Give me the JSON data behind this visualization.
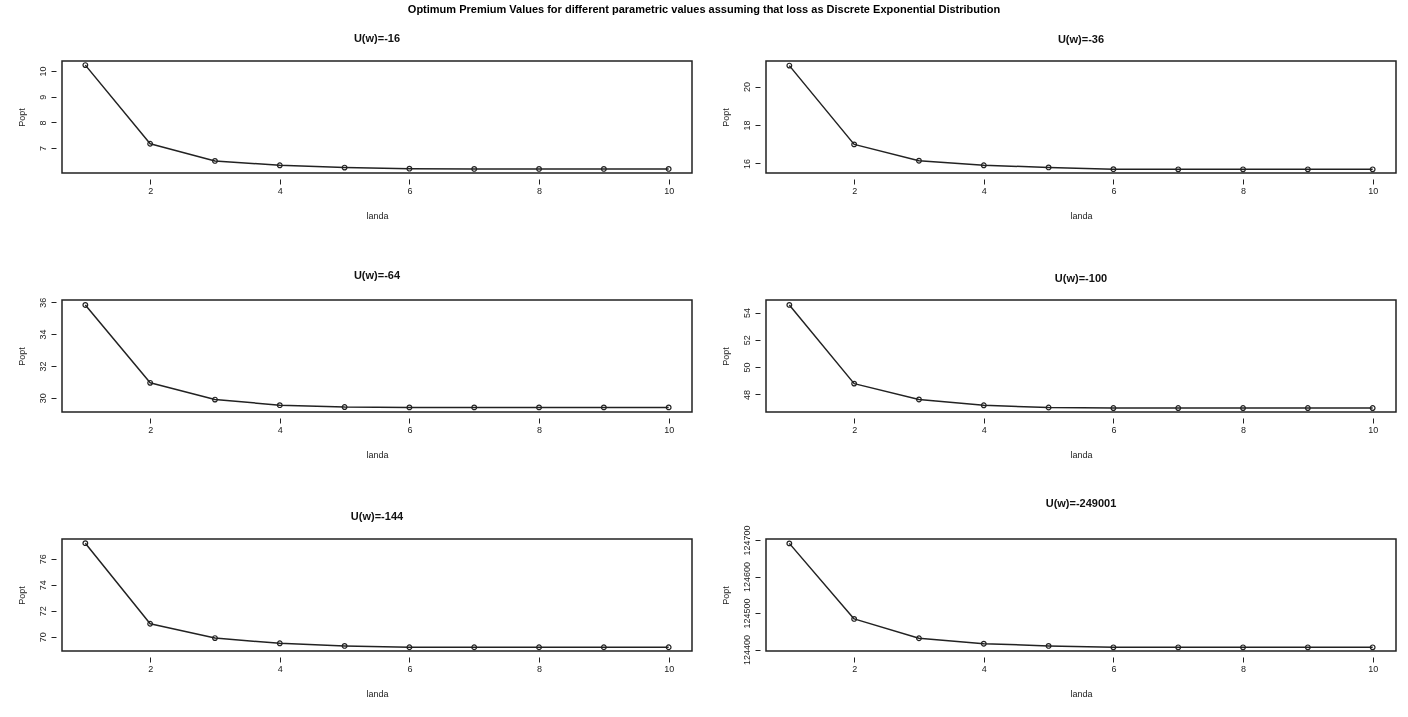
{
  "chart_data": [
    {
      "type": "line",
      "title": "Optimum Premium Values for different parametric values assuming that loss as Discrete Exponential Distribution",
      "subtitle": "U(w)=-16",
      "xlabel": "landa",
      "ylabel": "Popt",
      "x": [
        1,
        2,
        3,
        4,
        5,
        6,
        7,
        8,
        9,
        10
      ],
      "xlim": [
        0.64,
        10.36
      ],
      "xticks": [
        2,
        4,
        6,
        8,
        10
      ],
      "ylim": [
        6.03,
        10.39
      ],
      "yticks": [
        7,
        8,
        9,
        10
      ],
      "marker": "circle",
      "grid": false,
      "series": [
        {
          "color": "#222222",
          "values": [
            10.23,
            7.17,
            6.5,
            6.33,
            6.24,
            6.2,
            6.19,
            6.19,
            6.19,
            6.19
          ]
        }
      ]
    },
    {
      "type": "line",
      "subtitle": "U(w)=-36",
      "xlabel": "landa",
      "ylabel": "Popt",
      "x": [
        1,
        2,
        3,
        4,
        5,
        6,
        7,
        8,
        9,
        10
      ],
      "xlim": [
        0.64,
        10.36
      ],
      "xticks": [
        2,
        4,
        6,
        8,
        10
      ],
      "ylim": [
        15.5,
        21.33
      ],
      "yticks": [
        16,
        18,
        20
      ],
      "marker": "circle",
      "grid": false,
      "series": [
        {
          "color": "#222222",
          "values": [
            21.09,
            16.99,
            16.14,
            15.9,
            15.79,
            15.7,
            15.69,
            15.69,
            15.69,
            15.69
          ]
        }
      ]
    },
    {
      "type": "line",
      "subtitle": "U(w)=-64",
      "xlabel": "landa",
      "ylabel": "Popt",
      "x": [
        1,
        2,
        3,
        4,
        5,
        6,
        7,
        8,
        9,
        10
      ],
      "xlim": [
        0.64,
        10.36
      ],
      "xticks": [
        2,
        4,
        6,
        8,
        10
      ],
      "ylim": [
        29.11,
        36.14
      ],
      "yticks": [
        30,
        32,
        34,
        36
      ],
      "marker": "circle",
      "grid": false,
      "series": [
        {
          "color": "#222222",
          "values": [
            35.83,
            30.94,
            29.89,
            29.54,
            29.42,
            29.4,
            29.4,
            29.4,
            29.4,
            29.4
          ]
        }
      ]
    },
    {
      "type": "line",
      "subtitle": "U(w)=-100",
      "xlabel": "landa",
      "ylabel": "Popt",
      "x": [
        1,
        2,
        3,
        4,
        5,
        6,
        7,
        8,
        9,
        10
      ],
      "xlim": [
        0.64,
        10.36
      ],
      "xticks": [
        2,
        4,
        6,
        8,
        10
      ],
      "ylim": [
        46.71,
        54.92
      ],
      "yticks": [
        48,
        50,
        52,
        54
      ],
      "marker": "circle",
      "grid": false,
      "series": [
        {
          "color": "#222222",
          "values": [
            54.56,
            48.79,
            47.63,
            47.2,
            47.04,
            47.0,
            47.0,
            47.0,
            47.0,
            47.0
          ]
        }
      ]
    },
    {
      "type": "line",
      "subtitle": "U(w)=-144",
      "xlabel": "landa",
      "ylabel": "Popt",
      "x": [
        1,
        2,
        3,
        4,
        5,
        6,
        7,
        8,
        9,
        10
      ],
      "xlim": [
        0.64,
        10.36
      ],
      "xticks": [
        2,
        4,
        6,
        8,
        10
      ],
      "ylim": [
        68.91,
        77.51
      ],
      "yticks": [
        70,
        72,
        74,
        76
      ],
      "marker": "circle",
      "grid": false,
      "series": [
        {
          "color": "#222222",
          "values": [
            77.19,
            71.0,
            69.9,
            69.5,
            69.3,
            69.2,
            69.2,
            69.2,
            69.2,
            69.2
          ]
        }
      ]
    },
    {
      "type": "line",
      "subtitle": "U(w)=-249001",
      "xlabel": "landa",
      "ylabel": "Popt",
      "x": [
        1,
        2,
        3,
        4,
        5,
        6,
        7,
        8,
        9,
        10
      ],
      "xlim": [
        0.64,
        10.36
      ],
      "xticks": [
        2,
        4,
        6,
        8,
        10
      ],
      "ylim": [
        124396,
        124703
      ],
      "yticks": [
        124400,
        124500,
        124600,
        124700
      ],
      "marker": "circle",
      "grid": false,
      "series": [
        {
          "color": "#222222",
          "values": [
            124691,
            124484,
            124431,
            124416,
            124410,
            124406,
            124406,
            124406,
            124406,
            124406
          ]
        }
      ]
    }
  ]
}
